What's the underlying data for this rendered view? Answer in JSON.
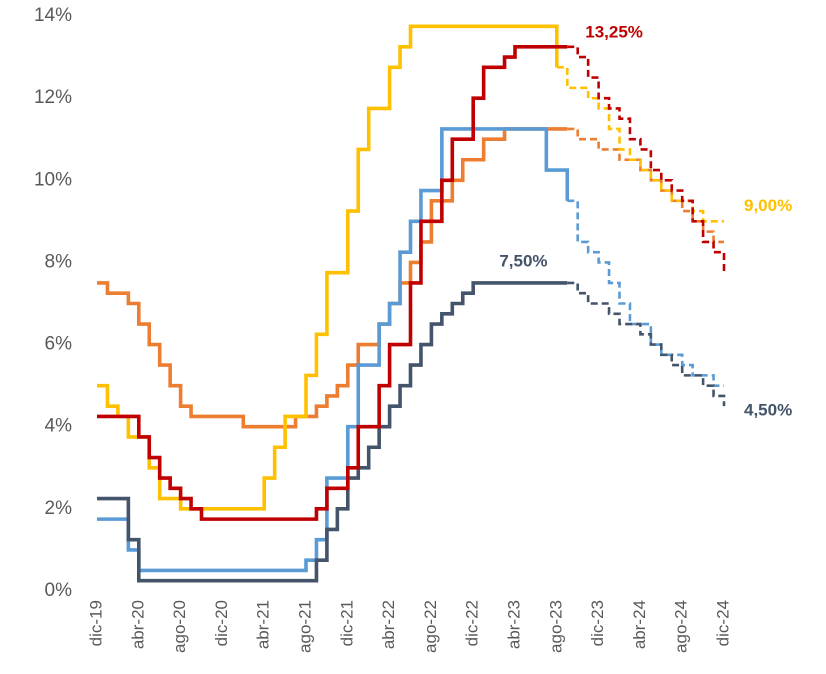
{
  "chart_data": {
    "type": "step-line",
    "categories": [
      "dic-19",
      null,
      null,
      null,
      "abr-20",
      null,
      null,
      null,
      "ago-20",
      null,
      null,
      null,
      "dic-20",
      null,
      null,
      null,
      "abr-21",
      null,
      null,
      null,
      "ago-21",
      null,
      null,
      null,
      "dic-21",
      null,
      null,
      null,
      "abr-22",
      null,
      null,
      null,
      "ago-22",
      null,
      null,
      null,
      "dic-22",
      null,
      null,
      null,
      "abr-23",
      null,
      null,
      null,
      "ago-23",
      null,
      null,
      null,
      "dic-23",
      null,
      null,
      null,
      "abr-24",
      null,
      null,
      null,
      "ago-24",
      null,
      null,
      null,
      "dic-24"
    ],
    "ylim": [
      0,
      14
    ],
    "yticks": [
      {
        "value": 0,
        "label": "0%"
      },
      {
        "value": 2,
        "label": "2%"
      },
      {
        "value": 4,
        "label": "4%"
      },
      {
        "value": 6,
        "label": "6%"
      },
      {
        "value": 8,
        "label": "8%"
      },
      {
        "value": 10,
        "label": "10%"
      },
      {
        "value": 12,
        "label": "12%"
      },
      {
        "value": 14,
        "label": "14%"
      }
    ],
    "grid": false,
    "series": [
      {
        "color": "#ed7d31",
        "dashed_from": 46,
        "values": [
          7.5,
          7.25,
          7.25,
          7.0,
          6.5,
          6.0,
          5.5,
          5.0,
          4.5,
          4.25,
          4.25,
          4.25,
          4.25,
          4.25,
          4.0,
          4.0,
          4.0,
          4.0,
          4.0,
          4.25,
          4.25,
          4.5,
          4.75,
          5.0,
          5.5,
          6.0,
          6.0,
          6.5,
          7.0,
          7.5,
          8.0,
          8.5,
          9.5,
          9.5,
          10.0,
          10.5,
          10.5,
          11.0,
          11.0,
          11.25,
          11.25,
          11.25,
          11.25,
          11.25,
          11.25,
          11.25,
          11.0,
          11.0,
          10.75,
          10.75,
          10.5,
          10.5,
          10.25,
          10.0,
          9.75,
          9.5,
          9.25,
          9.0,
          8.75,
          8.5,
          8.5
        ]
      },
      {
        "color": "#ffc000",
        "dashed_from": 45,
        "values": [
          5.0,
          4.5,
          4.25,
          3.75,
          3.75,
          3.0,
          2.25,
          2.25,
          2.0,
          2.0,
          2.0,
          2.0,
          2.0,
          2.0,
          2.0,
          2.0,
          2.75,
          3.5,
          4.25,
          4.25,
          5.25,
          6.25,
          7.75,
          7.75,
          9.25,
          10.75,
          11.75,
          11.75,
          12.75,
          13.25,
          13.75,
          13.75,
          13.75,
          13.75,
          13.75,
          13.75,
          13.75,
          13.75,
          13.75,
          13.75,
          13.75,
          13.75,
          13.75,
          13.75,
          12.75,
          12.25,
          12.25,
          12.0,
          11.75,
          11.25,
          10.75,
          10.5,
          10.25,
          10.0,
          9.75,
          9.5,
          9.5,
          9.25,
          9.0,
          9.0,
          9.0
        ],
        "value_labels": [
          null,
          null,
          null,
          null,
          null,
          null,
          null,
          null,
          null,
          null,
          null,
          null,
          null,
          null,
          null,
          null,
          null,
          null,
          null,
          null,
          null,
          null,
          null,
          null,
          null,
          null,
          null,
          null,
          null,
          null,
          null,
          null,
          null,
          null,
          null,
          null,
          null,
          null,
          null,
          null,
          null,
          null,
          null,
          null,
          null,
          null,
          null,
          null,
          null,
          null,
          null,
          null,
          null,
          null,
          null,
          null,
          null,
          null,
          null,
          null,
          "9,00%"
        ]
      },
      {
        "color": "#5b9bd5",
        "dashed_from": 46,
        "values": [
          1.75,
          1.75,
          1.75,
          1.0,
          0.5,
          0.5,
          0.5,
          0.5,
          0.5,
          0.5,
          0.5,
          0.5,
          0.5,
          0.5,
          0.5,
          0.5,
          0.5,
          0.5,
          0.5,
          0.5,
          0.75,
          1.25,
          2.75,
          2.75,
          4.0,
          5.5,
          5.5,
          6.5,
          7.0,
          8.25,
          9.0,
          9.75,
          9.75,
          11.25,
          11.25,
          11.25,
          11.25,
          11.25,
          11.25,
          11.25,
          11.25,
          11.25,
          11.25,
          10.25,
          10.25,
          9.5,
          8.5,
          8.25,
          8.0,
          7.5,
          7.0,
          6.5,
          6.5,
          6.0,
          5.75,
          5.75,
          5.5,
          5.25,
          5.25,
          5.0,
          5.0
        ]
      },
      {
        "color": "#44546a",
        "dashed_from": 46,
        "values": [
          2.25,
          2.25,
          2.25,
          1.25,
          0.25,
          0.25,
          0.25,
          0.25,
          0.25,
          0.25,
          0.25,
          0.25,
          0.25,
          0.25,
          0.25,
          0.25,
          0.25,
          0.25,
          0.25,
          0.25,
          0.25,
          0.75,
          1.5,
          2.0,
          2.75,
          3.0,
          3.5,
          4.0,
          4.5,
          5.0,
          5.5,
          6.0,
          6.5,
          6.75,
          7.0,
          7.25,
          7.5,
          7.5,
          7.5,
          7.5,
          7.5,
          7.5,
          7.5,
          7.5,
          7.5,
          7.5,
          7.25,
          7.0,
          7.0,
          6.75,
          6.5,
          6.5,
          6.25,
          6.0,
          5.75,
          5.5,
          5.25,
          5.25,
          5.0,
          4.75,
          4.5
        ],
        "value_labels": [
          null,
          null,
          null,
          null,
          null,
          null,
          null,
          null,
          null,
          null,
          null,
          null,
          null,
          null,
          null,
          null,
          null,
          null,
          null,
          null,
          null,
          null,
          null,
          null,
          null,
          null,
          null,
          null,
          null,
          null,
          null,
          null,
          null,
          null,
          null,
          null,
          null,
          null,
          null,
          null,
          null,
          "7,50%",
          null,
          null,
          null,
          null,
          null,
          null,
          null,
          null,
          null,
          null,
          null,
          null,
          null,
          null,
          null,
          null,
          null,
          null,
          "4,50%"
        ]
      },
      {
        "color": "#c00000",
        "dashed_from": 46,
        "values": [
          4.25,
          4.25,
          4.25,
          4.25,
          3.75,
          3.25,
          2.75,
          2.5,
          2.25,
          2.0,
          1.75,
          1.75,
          1.75,
          1.75,
          1.75,
          1.75,
          1.75,
          1.75,
          1.75,
          1.75,
          1.75,
          2.0,
          2.5,
          2.5,
          3.0,
          4.0,
          4.0,
          5.0,
          6.0,
          6.0,
          7.5,
          9.0,
          9.0,
          10.0,
          11.0,
          11.0,
          12.0,
          12.75,
          12.75,
          13.0,
          13.25,
          13.25,
          13.25,
          13.25,
          13.25,
          13.25,
          13.0,
          12.5,
          12.0,
          11.75,
          11.5,
          11.0,
          10.75,
          10.25,
          10.0,
          9.75,
          9.5,
          9.0,
          8.5,
          8.25,
          7.75
        ],
        "value_labels": [
          null,
          null,
          null,
          null,
          null,
          null,
          null,
          null,
          null,
          null,
          null,
          null,
          null,
          null,
          null,
          null,
          null,
          null,
          null,
          null,
          null,
          null,
          null,
          null,
          null,
          null,
          null,
          null,
          null,
          null,
          null,
          null,
          null,
          null,
          null,
          null,
          null,
          null,
          null,
          null,
          null,
          null,
          null,
          null,
          null,
          "13,25%",
          null,
          null,
          null,
          null,
          null,
          null,
          null,
          null,
          null,
          null,
          null,
          null,
          null,
          null,
          null
        ]
      }
    ]
  }
}
